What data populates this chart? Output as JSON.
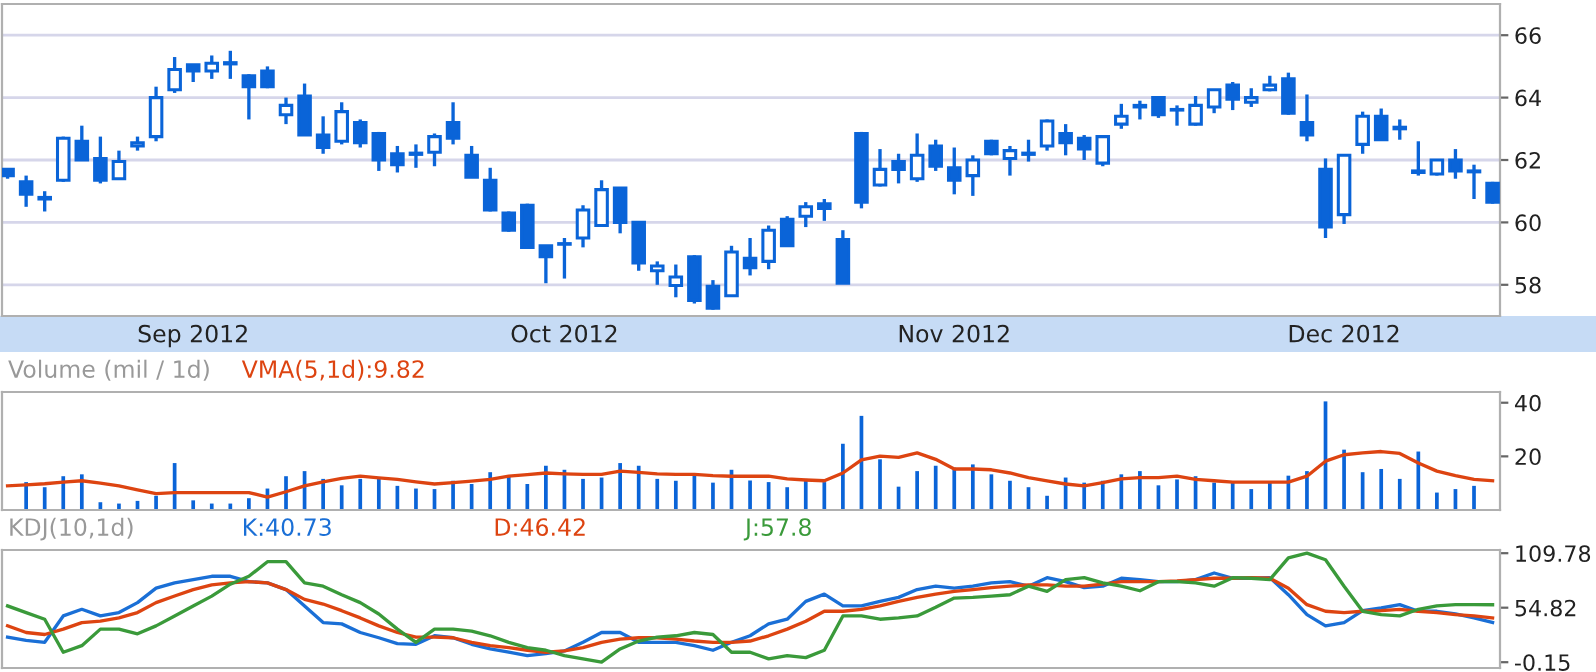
{
  "chart_data": [
    {
      "type": "candlestick",
      "color": "#0a64d8",
      "categories": [
        null,
        null,
        null,
        null,
        null,
        null,
        null,
        null,
        null,
        null,
        "Sep 2012",
        null,
        null,
        null,
        null,
        null,
        null,
        null,
        null,
        null,
        null,
        null,
        null,
        null,
        null,
        null,
        null,
        null,
        null,
        null,
        "Oct 2012",
        null,
        null,
        null,
        null,
        null,
        null,
        null,
        null,
        null,
        null,
        null,
        null,
        null,
        null,
        null,
        null,
        null,
        null,
        null,
        null,
        "Nov 2012",
        null,
        null,
        null,
        null,
        null,
        null,
        null,
        null,
        null,
        null,
        null,
        null,
        null,
        null,
        null,
        null,
        null,
        null,
        null,
        null,
        "Dec 2012",
        null,
        null,
        null,
        null,
        null,
        null,
        null,
        null
      ],
      "ohlc": [
        [
          61.7,
          61.7,
          61.4,
          61.5
        ],
        [
          61.3,
          61.5,
          60.5,
          60.9
        ],
        [
          60.75,
          61.0,
          60.35,
          60.8
        ],
        [
          61.35,
          62.75,
          61.3,
          62.7
        ],
        [
          62.6,
          63.1,
          62.0,
          62.0
        ],
        [
          62.05,
          62.75,
          61.25,
          61.35
        ],
        [
          61.4,
          62.3,
          61.4,
          61.95
        ],
        [
          62.45,
          62.75,
          62.3,
          62.55
        ],
        [
          62.75,
          64.35,
          62.6,
          64.0
        ],
        [
          64.25,
          65.3,
          64.15,
          64.9
        ],
        [
          65.05,
          65.05,
          64.5,
          64.85
        ],
        [
          64.85,
          65.35,
          64.6,
          65.1
        ],
        [
          65.08,
          65.5,
          64.6,
          65.12
        ],
        [
          64.7,
          64.75,
          63.3,
          64.35
        ],
        [
          64.85,
          65.0,
          64.3,
          64.35
        ],
        [
          63.45,
          64.0,
          63.15,
          63.75
        ],
        [
          64.05,
          64.45,
          62.8,
          62.8
        ],
        [
          62.8,
          63.4,
          62.2,
          62.4
        ],
        [
          62.6,
          63.85,
          62.5,
          63.55
        ],
        [
          63.2,
          63.3,
          62.4,
          62.55
        ],
        [
          62.85,
          62.9,
          61.65,
          62.0
        ],
        [
          62.2,
          62.45,
          61.6,
          61.85
        ],
        [
          62.18,
          62.5,
          61.75,
          62.22
        ],
        [
          62.25,
          62.85,
          61.8,
          62.75
        ],
        [
          63.2,
          63.85,
          62.5,
          62.7
        ],
        [
          62.15,
          62.45,
          61.45,
          61.45
        ],
        [
          61.35,
          61.75,
          60.35,
          60.4
        ],
        [
          60.3,
          60.35,
          59.7,
          59.75
        ],
        [
          60.55,
          60.6,
          59.15,
          59.2
        ],
        [
          59.25,
          59.25,
          58.05,
          58.9
        ],
        [
          59.3,
          59.5,
          58.2,
          59.32
        ],
        [
          59.5,
          60.55,
          59.2,
          60.4
        ],
        [
          59.9,
          61.35,
          59.9,
          61.05
        ],
        [
          61.1,
          61.1,
          59.65,
          60.0
        ],
        [
          60.0,
          60.0,
          58.45,
          58.7
        ],
        [
          58.45,
          58.75,
          58.0,
          58.6
        ],
        [
          57.98,
          58.65,
          57.6,
          58.25
        ],
        [
          58.9,
          58.95,
          57.4,
          57.5
        ],
        [
          57.95,
          58.15,
          57.2,
          57.25
        ],
        [
          57.65,
          59.25,
          57.65,
          59.05
        ],
        [
          58.85,
          59.5,
          58.3,
          58.55
        ],
        [
          58.75,
          59.9,
          58.5,
          59.75
        ],
        [
          60.1,
          60.2,
          59.25,
          59.25
        ],
        [
          60.2,
          60.65,
          59.85,
          60.5
        ],
        [
          60.6,
          60.75,
          60.05,
          60.45
        ],
        [
          59.45,
          59.75,
          58.05,
          58.05
        ],
        [
          62.85,
          62.9,
          60.45,
          60.65
        ],
        [
          61.2,
          62.35,
          61.15,
          61.7
        ],
        [
          61.95,
          62.2,
          61.25,
          61.7
        ],
        [
          61.4,
          62.85,
          61.3,
          62.15
        ],
        [
          62.45,
          62.65,
          61.65,
          61.8
        ],
        [
          61.75,
          62.4,
          60.9,
          61.35
        ],
        [
          61.5,
          62.15,
          60.85,
          62.0
        ],
        [
          62.6,
          62.65,
          62.15,
          62.2
        ],
        [
          62.05,
          62.45,
          61.5,
          62.3
        ],
        [
          62.18,
          62.65,
          61.95,
          62.22
        ],
        [
          62.45,
          63.3,
          62.3,
          63.25
        ],
        [
          62.85,
          63.15,
          62.15,
          62.55
        ],
        [
          62.7,
          62.8,
          62.0,
          62.35
        ],
        [
          61.9,
          62.8,
          61.8,
          62.75
        ],
        [
          63.15,
          63.8,
          63.0,
          63.4
        ],
        [
          63.7,
          63.9,
          63.3,
          63.75
        ],
        [
          64.0,
          64.0,
          63.35,
          63.45
        ],
        [
          63.6,
          63.75,
          63.1,
          63.62
        ],
        [
          63.15,
          64.05,
          63.1,
          63.75
        ],
        [
          63.7,
          64.25,
          63.5,
          64.25
        ],
        [
          64.4,
          64.5,
          63.6,
          63.95
        ],
        [
          63.85,
          64.3,
          63.7,
          64.0
        ],
        [
          64.25,
          64.7,
          64.2,
          64.4
        ],
        [
          64.6,
          64.8,
          63.45,
          63.5
        ],
        [
          63.2,
          64.1,
          62.6,
          62.8
        ],
        [
          61.7,
          62.05,
          59.5,
          59.85
        ],
        [
          60.25,
          62.15,
          59.95,
          62.15
        ],
        [
          62.5,
          63.55,
          62.2,
          63.4
        ],
        [
          63.4,
          63.65,
          62.65,
          62.65
        ],
        [
          63.0,
          63.3,
          62.65,
          63.05
        ],
        [
          61.65,
          62.6,
          61.5,
          61.6
        ],
        [
          61.55,
          62.0,
          61.5,
          62.0
        ],
        [
          62.0,
          62.35,
          61.4,
          61.65
        ],
        [
          61.62,
          61.85,
          60.75,
          61.65
        ],
        [
          61.25,
          61.3,
          60.6,
          60.65
        ]
      ],
      "ylim": [
        57,
        67
      ],
      "yticks": [
        58,
        60,
        62,
        64,
        66
      ],
      "grid": "y"
    },
    {
      "type": "bar",
      "title": "Volume (mil / 1d)",
      "tick_labels": "y",
      "ylim": [
        0,
        44
      ],
      "yticks": [
        20,
        40
      ],
      "categories": [
        null,
        null,
        null,
        null,
        null,
        null,
        null,
        null,
        null,
        null,
        null,
        null,
        null,
        null,
        null,
        null,
        null,
        null,
        null,
        null,
        null,
        null,
        null,
        null,
        null,
        null,
        null,
        null,
        null,
        null,
        null,
        null,
        null,
        null,
        null,
        null,
        null,
        null,
        null,
        null,
        null,
        null,
        null,
        null,
        null,
        null,
        null,
        null,
        null,
        null,
        null,
        null,
        null,
        null,
        null,
        null,
        null,
        null,
        null,
        null,
        null,
        null,
        null,
        null,
        null,
        null,
        null,
        null,
        null,
        null,
        null,
        null,
        null,
        null,
        null,
        null,
        null,
        null,
        null,
        null,
        null
      ],
      "series": [
        {
          "type": "bar",
          "color": "#0a64d8",
          "values": [
            null,
            10.4,
            8.5,
            12.6,
            13.3,
            2.9,
            2.4,
            3.4,
            5.3,
            17.5,
            3.6,
            2.4,
            2.4,
            4.4,
            8.0,
            12.6,
            14.5,
            11.6,
            9.2,
            11.6,
            11.6,
            9.0,
            8.0,
            7.8,
            10.9,
            9.7,
            14.1,
            12.8,
            9.7,
            16.5,
            15.0,
            11.6,
            12.1,
            17.5,
            16.5,
            11.6,
            10.9,
            13.3,
            10.2,
            15.0,
            11,
            10.4,
            8.5,
            11.6,
            10.4,
            24.7,
            35.1,
            18.9,
            8.7,
            14.5,
            16.5,
            15.8,
            17.0,
            13.3,
            10.9,
            8.5,
            5.3,
            12.1,
            10.2,
            10.9,
            13.3,
            14.5,
            9.2,
            11.4,
            12.6,
            10.2,
            10.4,
            7.8,
            10.4,
            12.8,
            14.5,
            40.5,
            22.5,
            14.1,
            15.3,
            11.6,
            21.8,
            6.5,
            7.8,
            9.0,
            null
          ]
        },
        {
          "type": "line",
          "name": "VMA(5,1d):9.82",
          "color": "#dd4411",
          "values": [
            9.0,
            9.4,
            9.8,
            10.4,
            10.9,
            10.0,
            9.0,
            7.5,
            6.1,
            6.5,
            6.5,
            6.5,
            6.5,
            6.5,
            4.8,
            6.8,
            9.0,
            10.5,
            11.8,
            12.6,
            12.0,
            11.4,
            10.5,
            9.7,
            10.2,
            10.8,
            11.4,
            12.6,
            13.2,
            13.8,
            13.5,
            13.3,
            13.3,
            14.5,
            14.0,
            13.5,
            13.3,
            13.3,
            12.8,
            12.6,
            12.6,
            12.6,
            11.6,
            11.2,
            10.9,
            13.8,
            18.7,
            20.1,
            19.6,
            21.3,
            18.9,
            15.3,
            15.3,
            15.0,
            13.8,
            12.1,
            10.9,
            9.7,
            9.0,
            10.2,
            11.6,
            12.1,
            12.1,
            12.6,
            11.4,
            10.9,
            10.4,
            10.4,
            10.4,
            10.4,
            12.6,
            18.2,
            20.6,
            21.3,
            21.8,
            21.1,
            17.5,
            14.5,
            12.8,
            11.4,
            10.9
          ]
        }
      ]
    },
    {
      "type": "line",
      "title": "KDJ(10,1d)",
      "tick_labels": "y",
      "ylim": [
        -6,
        113
      ],
      "yticks": [
        109.78,
        54.82,
        -0.15
      ],
      "categories": [
        null,
        null,
        null,
        null,
        null,
        null,
        null,
        null,
        null,
        null,
        null,
        null,
        null,
        null,
        null,
        null,
        null,
        null,
        null,
        null,
        null,
        null,
        null,
        null,
        null,
        null,
        null,
        null,
        null,
        null,
        null,
        null,
        null,
        null,
        null,
        null,
        null,
        null,
        null,
        null,
        null,
        null,
        null,
        null,
        null,
        null,
        null,
        null,
        null,
        null,
        null,
        null,
        null,
        null,
        null,
        null,
        null,
        null,
        null,
        null,
        null,
        null,
        null,
        null,
        null,
        null,
        null,
        null,
        null,
        null,
        null,
        null,
        null,
        null,
        null,
        null,
        null,
        null,
        null,
        null,
        null
      ],
      "series": [
        {
          "name": "K:40.73",
          "color": "#1a6fd6",
          "values": [
            25.2,
            21.9,
            19.9,
            46.5,
            53.2,
            46.5,
            49.9,
            59.9,
            74.5,
            79.8,
            83.1,
            86.5,
            86.5,
            81.1,
            79.8,
            73.1,
            56.5,
            39.8,
            38.5,
            29.8,
            24.5,
            18.5,
            17.9,
            26.5,
            24.5,
            17.9,
            13.2,
            9.9,
            6.5,
            8.5,
            11.2,
            19.9,
            29.8,
            29.8,
            19.9,
            19.9,
            19.9,
            16.5,
            11.9,
            19.9,
            26.5,
            38.5,
            43.2,
            61.2,
            68.5,
            56.6,
            56.6,
            61.2,
            65.2,
            73.1,
            76.5,
            74.5,
            76.5,
            79.8,
            81.1,
            76.5,
            85.1,
            81.1,
            75.1,
            76.5,
            84.5,
            83.1,
            81.1,
            81.1,
            83.1,
            89.8,
            84.5,
            84.5,
            85.1,
            67.9,
            47.8,
            36.5,
            39.8,
            51.8,
            54.5,
            57.9,
            51.2,
            51.2,
            48.5,
            44.5,
            39.8
          ]
        },
        {
          "name": "D:46.42",
          "color": "#dd4411",
          "values": [
            36.5,
            29.8,
            27.8,
            33.2,
            39.8,
            41.2,
            44.5,
            49.9,
            59.9,
            66.6,
            73.1,
            77.8,
            79.8,
            81.1,
            79.8,
            73.1,
            63.2,
            58.5,
            51.8,
            44.5,
            36.5,
            29.8,
            25.2,
            25.2,
            24.5,
            19.9,
            16.5,
            14.5,
            11.9,
            9.9,
            11.2,
            14.5,
            19.9,
            23.2,
            24.5,
            24.5,
            23.2,
            21.2,
            19.9,
            19.9,
            21.2,
            26.5,
            33.2,
            41.2,
            51.2,
            51.2,
            53.2,
            56.6,
            61.2,
            65.2,
            68.5,
            71.2,
            73.1,
            75.1,
            76.5,
            77.8,
            77.8,
            76.5,
            76.5,
            78.5,
            81.1,
            81.1,
            81.1,
            81.8,
            83.1,
            84.5,
            84.5,
            85.1,
            84.5,
            74.5,
            57.9,
            51.2,
            49.9,
            51.2,
            51.8,
            53.2,
            51.2,
            49.9,
            47.8,
            46.5,
            44.5
          ]
        },
        {
          "name": "J:57.8",
          "color": "#3a9a3a",
          "values": [
            56.6,
            49.9,
            43.2,
            9.9,
            16.5,
            33.2,
            33.2,
            28.5,
            36.5,
            46.5,
            56.6,
            66.5,
            78.5,
            86.5,
            101.2,
            101.2,
            79.8,
            76.5,
            67.9,
            59.9,
            48.5,
            33.2,
            19.9,
            33.2,
            33.2,
            31.2,
            26.5,
            19.9,
            14.5,
            11.9,
            6.5,
            3.2,
            -0.15,
            13.2,
            21.2,
            25.2,
            26.5,
            29.8,
            27.8,
            9.9,
            9.9,
            3.2,
            6.5,
            4.5,
            11.9,
            46.5,
            46.5,
            43.2,
            44.5,
            46.5,
            55.2,
            64.5,
            65.2,
            66.5,
            67.9,
            76.5,
            71.2,
            83.1,
            85.1,
            79.8,
            76.5,
            71.9,
            81.1,
            81.1,
            79.8,
            76.5,
            85.1,
            84.5,
            83.1,
            105.1,
            109.78,
            103.2,
            76.5,
            51.2,
            47.8,
            46.5,
            53.2,
            56.6,
            57.9,
            57.9,
            57.8
          ]
        }
      ]
    }
  ]
}
